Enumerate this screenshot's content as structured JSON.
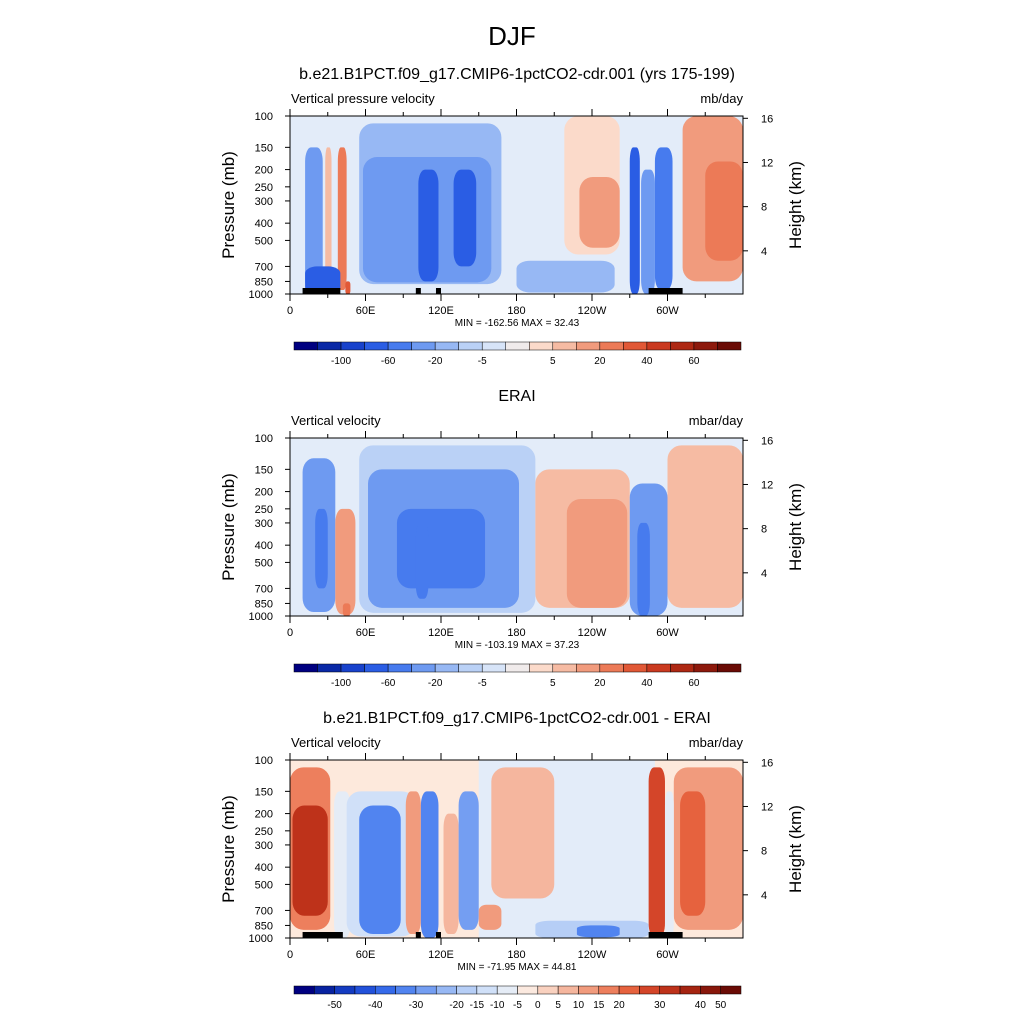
{
  "page": {
    "title": "DJF"
  },
  "common": {
    "y_axis_label": "Pressure (mb)",
    "y2_axis_label": "Height (km)",
    "pressure_ticks": [
      "100",
      "150",
      "200",
      "250",
      "300",
      "400",
      "500",
      "700",
      "850",
      "1000"
    ],
    "height_ticks": [
      "16",
      "12",
      "8",
      "4"
    ],
    "lon_ticks": [
      "0",
      "60E",
      "120E",
      "180",
      "120W",
      "60W"
    ]
  },
  "chart_data": [
    {
      "type": "heatmap",
      "title": "b.e21.B1PCT.f09_g17.CMIP6-1pctCO2-cdr.001 (yrs 175-199)",
      "left_label": "Vertical pressure velocity",
      "units": "mb/day",
      "stats": "MIN = -162.56  MAX =  32.43",
      "min": -162.56,
      "max": 32.43,
      "x_domain": [
        0,
        360
      ],
      "levels": [
        -120,
        -100,
        -80,
        -60,
        -40,
        -20,
        -10,
        -5,
        -1,
        1,
        5,
        10,
        20,
        30,
        40,
        50,
        60,
        80
      ],
      "colorbar_labels": [
        "-100",
        "-60",
        "-20",
        "-5",
        "5",
        "20",
        "40",
        "60"
      ],
      "features": [
        {
          "lon": [
            12,
            26
          ],
          "p": [
            150,
            1000
          ],
          "value": -35
        },
        {
          "lon": [
            28,
            33
          ],
          "p": [
            150,
            1000
          ],
          "value": 5
        },
        {
          "lon": [
            38,
            45
          ],
          "p": [
            150,
            950
          ],
          "value": 20
        },
        {
          "lon": [
            44,
            48
          ],
          "p": [
            850,
            1000
          ],
          "value": 35
        },
        {
          "lon": [
            12,
            40
          ],
          "p": [
            700,
            1000
          ],
          "value": -75
        },
        {
          "lon": [
            55,
            168
          ],
          "p": [
            110,
            880
          ],
          "value": -12
        },
        {
          "lon": [
            58,
            160
          ],
          "p": [
            170,
            860
          ],
          "value": -38
        },
        {
          "lon": [
            102,
            118
          ],
          "p": [
            200,
            850
          ],
          "value": -75
        },
        {
          "lon": [
            130,
            148
          ],
          "p": [
            200,
            700
          ],
          "value": -65
        },
        {
          "lon": [
            218,
            262
          ],
          "p": [
            100,
            600
          ],
          "value": 4
        },
        {
          "lon": [
            230,
            262
          ],
          "p": [
            220,
            550
          ],
          "value": 14
        },
        {
          "lon": [
            180,
            258
          ],
          "p": [
            650,
            980
          ],
          "value": -18
        },
        {
          "lon": [
            270,
            278
          ],
          "p": [
            150,
            1000
          ],
          "value": -75
        },
        {
          "lon": [
            279,
            290
          ],
          "p": [
            200,
            1000
          ],
          "value": -40
        },
        {
          "lon": [
            290,
            304
          ],
          "p": [
            150,
            950
          ],
          "value": -60
        },
        {
          "lon": [
            312,
            360
          ],
          "p": [
            100,
            850
          ],
          "value": 10
        },
        {
          "lon": [
            330,
            360
          ],
          "p": [
            180,
            650
          ],
          "value": 25
        }
      ],
      "topography": [
        [
          10,
          40
        ],
        [
          100,
          104
        ],
        [
          116,
          120
        ],
        [
          285,
          312
        ]
      ]
    },
    {
      "type": "heatmap",
      "title": "ERAI",
      "left_label": "Vertical velocity",
      "units": "mbar/day",
      "stats": "MIN = -103.19  MAX =  37.23",
      "min": -103.19,
      "max": 37.23,
      "x_domain": [
        0,
        360
      ],
      "levels": [
        -120,
        -100,
        -80,
        -60,
        -40,
        -20,
        -10,
        -5,
        -1,
        1,
        5,
        10,
        20,
        30,
        40,
        50,
        60,
        80
      ],
      "colorbar_labels": [
        "-100",
        "-60",
        "-20",
        "-5",
        "5",
        "20",
        "40",
        "60"
      ],
      "features": [
        {
          "lon": [
            10,
            36
          ],
          "p": [
            130,
            950
          ],
          "value": -30
        },
        {
          "lon": [
            20,
            30
          ],
          "p": [
            250,
            700
          ],
          "value": -50
        },
        {
          "lon": [
            36,
            52
          ],
          "p": [
            250,
            980
          ],
          "value": 12
        },
        {
          "lon": [
            42,
            48
          ],
          "p": [
            850,
            1000
          ],
          "value": 25
        },
        {
          "lon": [
            55,
            195
          ],
          "p": [
            110,
            960
          ],
          "value": -10
        },
        {
          "lon": [
            62,
            182
          ],
          "p": [
            150,
            900
          ],
          "value": -32
        },
        {
          "lon": [
            85,
            155
          ],
          "p": [
            250,
            700
          ],
          "value": -50
        },
        {
          "lon": [
            100,
            110
          ],
          "p": [
            300,
            800
          ],
          "value": -60
        },
        {
          "lon": [
            195,
            270
          ],
          "p": [
            150,
            900
          ],
          "value": 6
        },
        {
          "lon": [
            220,
            268
          ],
          "p": [
            220,
            900
          ],
          "value": 14
        },
        {
          "lon": [
            270,
            300
          ],
          "p": [
            180,
            1000
          ],
          "value": -28
        },
        {
          "lon": [
            276,
            286
          ],
          "p": [
            300,
            1000
          ],
          "value": -55
        },
        {
          "lon": [
            300,
            360
          ],
          "p": [
            110,
            900
          ],
          "value": 6
        }
      ],
      "topography": []
    },
    {
      "type": "heatmap",
      "title": "b.e21.B1PCT.f09_g17.CMIP6-1pctCO2-cdr.001 - ERAI",
      "left_label": "Vertical velocity",
      "units": "mbar/day",
      "stats": "MIN = -71.95  MAX =  44.81",
      "min": -71.95,
      "max": 44.81,
      "x_domain": [
        0,
        360
      ],
      "levels": [
        -55,
        -50,
        -45,
        -40,
        -35,
        -30,
        -25,
        -20,
        -15,
        -10,
        -5,
        0,
        5,
        10,
        15,
        20,
        25,
        30,
        35,
        40,
        50
      ],
      "colorbar_labels": [
        "-50",
        "-40",
        "-30",
        "-20",
        "-15",
        "-10",
        "-5",
        "0",
        "5",
        "10",
        "15",
        "20",
        "30",
        "40",
        "50"
      ],
      "features": [
        {
          "lon": [
            0,
            32
          ],
          "p": [
            110,
            900
          ],
          "value": 18
        },
        {
          "lon": [
            2,
            30
          ],
          "p": [
            180,
            750
          ],
          "value": 30
        },
        {
          "lon": [
            35,
            48
          ],
          "p": [
            150,
            1000
          ],
          "value": -6
        },
        {
          "lon": [
            45,
            100
          ],
          "p": [
            150,
            980
          ],
          "value": -14
        },
        {
          "lon": [
            55,
            88
          ],
          "p": [
            180,
            950
          ],
          "value": -35
        },
        {
          "lon": [
            92,
            104
          ],
          "p": [
            150,
            950
          ],
          "value": 12
        },
        {
          "lon": [
            104,
            118
          ],
          "p": [
            150,
            1000
          ],
          "value": -35
        },
        {
          "lon": [
            122,
            134
          ],
          "p": [
            200,
            950
          ],
          "value": 8
        },
        {
          "lon": [
            134,
            150
          ],
          "p": [
            150,
            900
          ],
          "value": -30
        },
        {
          "lon": [
            150,
            168
          ],
          "p": [
            650,
            900
          ],
          "value": 10
        },
        {
          "lon": [
            160,
            210
          ],
          "p": [
            110,
            600
          ],
          "value": 5
        },
        {
          "lon": [
            195,
            285
          ],
          "p": [
            800,
            1000
          ],
          "value": -18
        },
        {
          "lon": [
            228,
            262
          ],
          "p": [
            850,
            990
          ],
          "value": -32
        },
        {
          "lon": [
            285,
            298
          ],
          "p": [
            110,
            990
          ],
          "value": 25
        },
        {
          "lon": [
            305,
            360
          ],
          "p": [
            110,
            900
          ],
          "value": 12
        },
        {
          "lon": [
            310,
            330
          ],
          "p": [
            150,
            750
          ],
          "value": 22
        },
        {
          "lon": [
            298,
            305
          ],
          "p": [
            150,
            1000
          ],
          "value": -10
        }
      ],
      "topography": [
        [
          10,
          42
        ],
        [
          100,
          104
        ],
        [
          116,
          120
        ],
        [
          285,
          312
        ]
      ]
    }
  ]
}
